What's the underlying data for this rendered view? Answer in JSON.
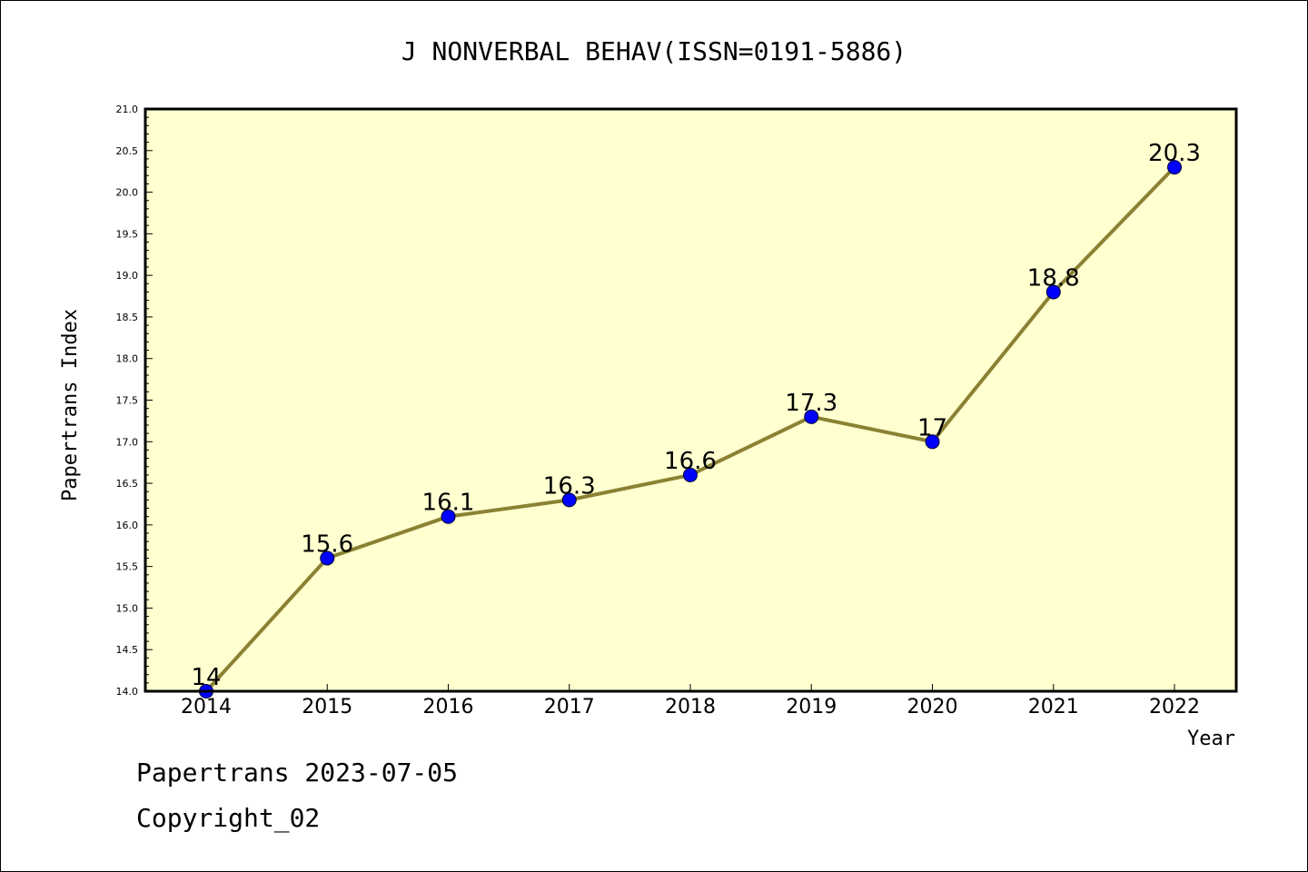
{
  "chart_data": {
    "type": "line",
    "title": "J NONVERBAL BEHAV(ISSN=0191-5886)",
    "xlabel": "Year",
    "ylabel": "Papertrans Index",
    "categories": [
      "2014",
      "2015",
      "2016",
      "2017",
      "2018",
      "2019",
      "2020",
      "2021",
      "2022"
    ],
    "values": [
      14.0,
      15.6,
      16.1,
      16.3,
      16.6,
      17.3,
      17.0,
      18.8,
      20.3
    ],
    "data_labels": [
      "14",
      "15.6",
      "16.1",
      "16.3",
      "16.6",
      "17.3",
      "17",
      "18.8",
      "20.3"
    ],
    "ylim": [
      14.0,
      21.0
    ],
    "yticks": [
      "14.0",
      "14.5",
      "15.0",
      "15.5",
      "16.0",
      "16.5",
      "17.0",
      "17.5",
      "18.0",
      "18.5",
      "19.0",
      "19.5",
      "20.0",
      "20.5",
      "21.0"
    ],
    "grid": false,
    "colors": {
      "plot_bg": "#ffffd0",
      "line": "#8b8132",
      "marker": "#0000ff"
    }
  },
  "footer": {
    "line1": "Papertrans 2023-07-05",
    "line2": "Copyright_02"
  }
}
